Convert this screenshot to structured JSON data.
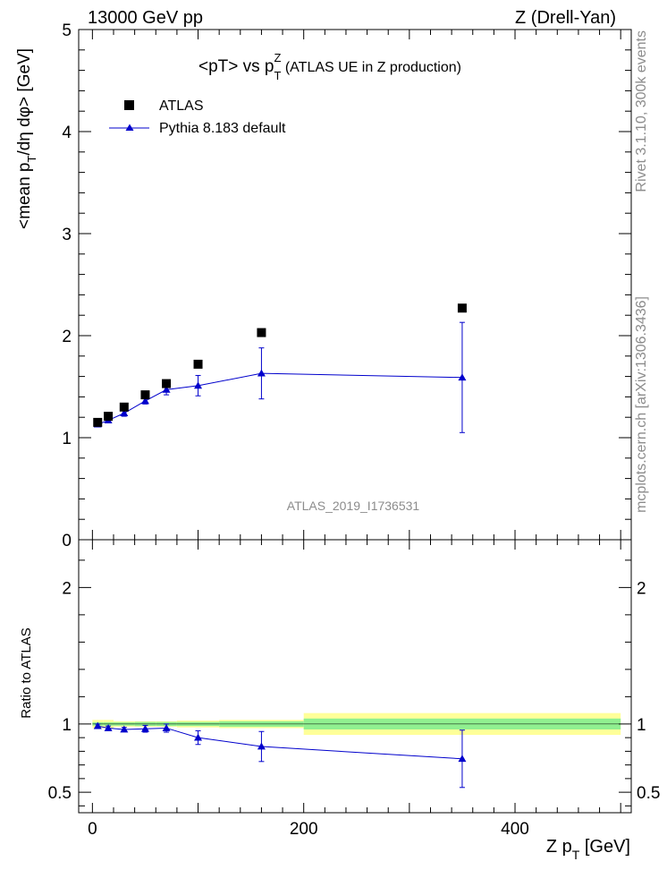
{
  "header": {
    "left": "13000 GeV pp",
    "right": "Z (Drell-Yan)"
  },
  "side_text": {
    "rivet": "Rivet 3.1.10,  300k events",
    "mcplots": "mcplots.cern.ch [arXiv:1306.3436]"
  },
  "colors": {
    "mc": "#0000cc",
    "band_stat": "#90f090",
    "band_total": "#ffff99",
    "data": "#000000"
  },
  "chart_data": {
    "type": "scatter",
    "title_main": "<pT> vs p",
    "title_sup": "Z",
    "title_sub": "T",
    "title_tail": " (ATLAS UE in Z production)",
    "watermark": "ATLAS_2019_I1736531",
    "ylabel": "<mean p_T/dη dφ> [GeV]",
    "ylabel_parts": {
      "pre": "<mean p",
      "sub": "T",
      "post": "/dη dφ> [GeV]"
    },
    "ratio_ylabel": "Ratio to ATLAS",
    "xlabel": "Z p_T [GeV]",
    "xlabel_parts": {
      "pre": "Z p",
      "sub": "T",
      "post": " [GeV]"
    },
    "xlim": [
      -13,
      510
    ],
    "ylim": [
      0,
      5
    ],
    "ratio_ylim": [
      0.35,
      2.35
    ],
    "x_ticks": [
      0,
      200,
      400
    ],
    "y_ticks": [
      1,
      2,
      3,
      4,
      5
    ],
    "y_tick_zero_label": "0",
    "ratio_ticks": [
      0.5,
      1,
      2
    ],
    "ratio_tick_labels": [
      "0.5",
      "1",
      "2"
    ],
    "legend": {
      "position": "top-left",
      "entries": [
        "ATLAS",
        "Pythia 8.183 default"
      ]
    },
    "bins": [
      {
        "x": 5,
        "lo": 0,
        "hi": 10
      },
      {
        "x": 15,
        "lo": 10,
        "hi": 20
      },
      {
        "x": 30,
        "lo": 20,
        "hi": 40
      },
      {
        "x": 50,
        "lo": 40,
        "hi": 60
      },
      {
        "x": 70,
        "lo": 60,
        "hi": 80
      },
      {
        "x": 100,
        "lo": 80,
        "hi": 120
      },
      {
        "x": 160,
        "lo": 120,
        "hi": 200
      },
      {
        "x": 350,
        "lo": 200,
        "hi": 500
      }
    ],
    "series": [
      {
        "name": "ATLAS",
        "marker": "square",
        "values": [
          1.15,
          1.21,
          1.3,
          1.42,
          1.53,
          1.72,
          2.03,
          2.27
        ]
      },
      {
        "name": "Pythia 8.183 default",
        "marker": "triangle",
        "values": [
          1.13,
          1.17,
          1.24,
          1.36,
          1.47,
          1.51,
          1.63,
          1.59
        ],
        "errors": [
          0.02,
          0.02,
          0.03,
          0.03,
          0.05,
          0.1,
          0.25,
          0.54
        ]
      }
    ],
    "ratio": {
      "values": [
        0.985,
        0.97,
        0.96,
        0.965,
        0.97,
        0.9,
        0.835,
        0.745
      ],
      "errors": [
        0.015,
        0.015,
        0.015,
        0.025,
        0.03,
        0.05,
        0.11,
        0.21
      ],
      "band_stat": [
        0.012,
        0.012,
        0.012,
        0.015,
        0.015,
        0.015,
        0.02,
        0.04
      ],
      "band_total": [
        0.03,
        0.03,
        0.02,
        0.02,
        0.02,
        0.025,
        0.03,
        0.08
      ]
    }
  }
}
